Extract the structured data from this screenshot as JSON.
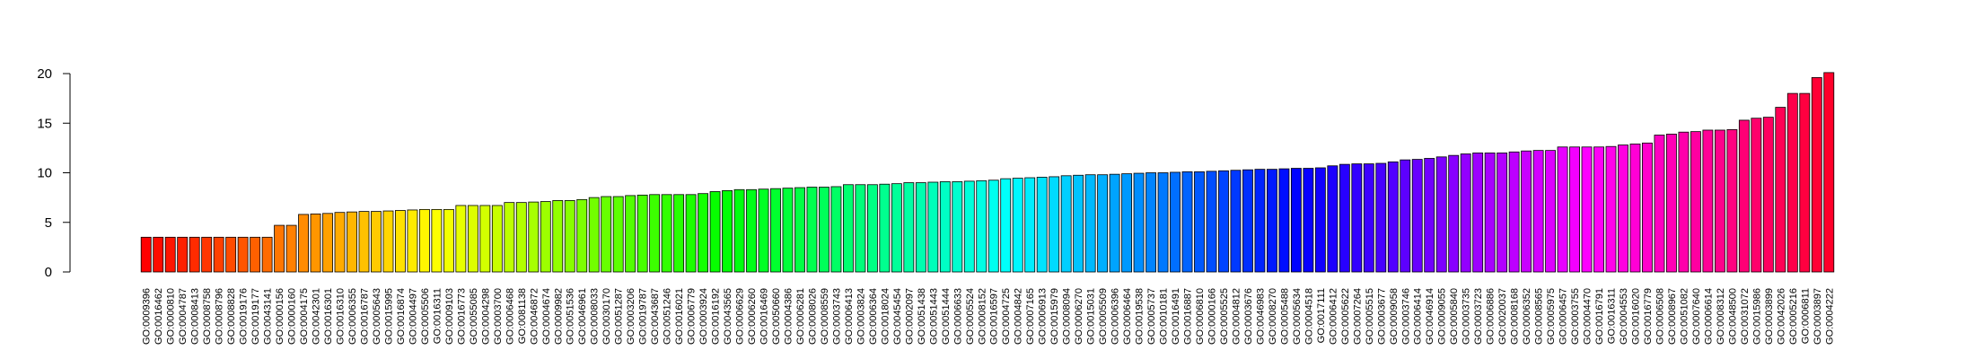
{
  "chart_data": {
    "type": "bar",
    "title": "",
    "xlabel": "",
    "ylabel": "",
    "ylim": [
      0,
      20
    ],
    "yticks": [
      0,
      5,
      10,
      15,
      20
    ],
    "grid": false,
    "legend": "none",
    "bar_colors": "rainbow gradient from red through yellow, green, cyan, blue, magenta back to red",
    "categories": [
      "GO:0009396",
      "GO:0016462",
      "GO:0000810",
      "GO:0004787",
      "GO:0008413",
      "GO:0008758",
      "GO:0008796",
      "GO:0008828",
      "GO:0019176",
      "GO:0019177",
      "GO:0043141",
      "GO:0000156",
      "GO:0000160",
      "GO:0004175",
      "GO:0042301",
      "GO:0016301",
      "GO:0016310",
      "GO:0006355",
      "GO:0016787",
      "GO:0005643",
      "GO:0015995",
      "GO:0016874",
      "GO:0004497",
      "GO:0005506",
      "GO:0016311",
      "GO:0009103",
      "GO:0016773",
      "GO:0055085",
      "GO:0004298",
      "GO:0003700",
      "GO:0006468",
      "GO:0081138",
      "GO:0046872",
      "GO:0004674",
      "GO:0009982",
      "GO:0051536",
      "GO:0046961",
      "GO:0008033",
      "GO:0030170",
      "GO:0051287",
      "GO:0003206",
      "GO:0019787",
      "GO:0043687",
      "GO:0051246",
      "GO:0016021",
      "GO:0006779",
      "GO:0003924",
      "GO:0016192",
      "GO:0043565",
      "GO:0006629",
      "GO:0006260",
      "GO:0016469",
      "GO:0050660",
      "GO:0004386",
      "GO:0006281",
      "GO:0008026",
      "GO:0008559",
      "GO:0003743",
      "GO:0006413",
      "GO:0003824",
      "GO:0006364",
      "GO:0018024",
      "GO:0045454",
      "GO:0002097",
      "GO:0051438",
      "GO:0051443",
      "GO:0051444",
      "GO:0006633",
      "GO:0005524",
      "GO:0008152",
      "GO:0016597",
      "GO:0004725",
      "GO:0004842",
      "GO:0007165",
      "GO:0006913",
      "GO:0015979",
      "GO:0008094",
      "GO:0006270",
      "GO:0015031",
      "GO:0005509",
      "GO:0006396",
      "GO:0006464",
      "GO:0019538",
      "GO:0005737",
      "GO:0010181",
      "GO:0016491",
      "GO:0016887",
      "GO:0006810",
      "GO:0000166",
      "GO:0005525",
      "GO:0004812",
      "GO:0003676",
      "GO:0046983",
      "GO:0008270",
      "GO:0005488",
      "GO:0005634",
      "GO:0004518",
      "GO:0017111",
      "GO:0006412",
      "GO:0005622",
      "GO:0007264",
      "GO:0005515",
      "GO:0003677",
      "GO:0009058",
      "GO:0003746",
      "GO:0006414",
      "GO:0046914",
      "GO:0009055",
      "GO:0005840",
      "GO:0003735",
      "GO:0003723",
      "GO:0006886",
      "GO:0020037",
      "GO:0008168",
      "GO:0006352",
      "GO:0008565",
      "GO:0005975",
      "GO:0006457",
      "GO:0003755",
      "GO:0004470",
      "GO:0016791",
      "GO:0016311",
      "GO:0004553",
      "GO:0016020",
      "GO:0016779",
      "GO:0006508",
      "GO:0008967",
      "GO:0051082",
      "GO:0007640",
      "GO:0006614",
      "GO:0008312",
      "GO:0048500",
      "GO:0031072",
      "GO:0015986",
      "GO:0003899",
      "GO:0042026",
      "GO:0005216",
      "GO:0006811",
      "GO:0003897",
      "GO:0004222"
    ],
    "values": [
      3.5,
      3.5,
      3.5,
      3.5,
      3.5,
      3.5,
      3.5,
      3.5,
      3.5,
      3.5,
      3.5,
      4.7,
      4.7,
      5.8,
      5.85,
      5.9,
      6.0,
      6.05,
      6.1,
      6.1,
      6.15,
      6.2,
      6.25,
      6.3,
      6.3,
      6.3,
      6.7,
      6.7,
      6.7,
      6.7,
      7.0,
      7.0,
      7.05,
      7.1,
      7.2,
      7.2,
      7.3,
      7.5,
      7.6,
      7.6,
      7.7,
      7.75,
      7.8,
      7.8,
      7.8,
      7.8,
      7.9,
      8.1,
      8.2,
      8.3,
      8.3,
      8.35,
      8.4,
      8.45,
      8.5,
      8.55,
      8.55,
      8.6,
      8.8,
      8.8,
      8.8,
      8.85,
      8.9,
      9.0,
      9.0,
      9.05,
      9.1,
      9.1,
      9.15,
      9.2,
      9.25,
      9.4,
      9.45,
      9.5,
      9.55,
      9.6,
      9.7,
      9.75,
      9.8,
      9.8,
      9.85,
      9.9,
      9.95,
      10.0,
      10.0,
      10.05,
      10.1,
      10.1,
      10.15,
      10.2,
      10.25,
      10.3,
      10.35,
      10.35,
      10.4,
      10.45,
      10.45,
      10.5,
      10.7,
      10.85,
      10.9,
      10.9,
      10.95,
      11.1,
      11.3,
      11.35,
      11.45,
      11.6,
      11.75,
      11.9,
      12.0,
      12.0,
      12.0,
      12.1,
      12.2,
      12.25,
      12.25,
      12.6,
      12.6,
      12.6,
      12.6,
      12.65,
      12.8,
      12.9,
      13.0,
      13.8,
      13.9,
      14.1,
      14.15,
      14.3,
      14.3,
      14.35,
      15.3,
      15.5,
      15.6,
      16.6,
      18.0,
      18.0,
      19.6,
      20.1
    ]
  }
}
